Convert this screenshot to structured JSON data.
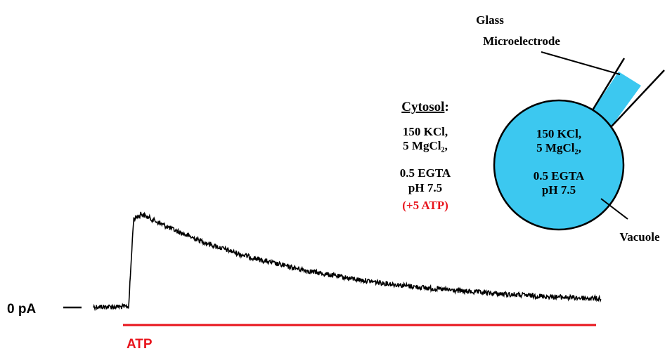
{
  "electrode": {
    "label_lines": [
      "Glass",
      "Microelectrode"
    ]
  },
  "cytosol": {
    "title": "Cytosol",
    "title_suffix": ":",
    "lines": [
      "150 KCl,",
      "5 MgCl₂,",
      "0.5 EGTA",
      "pH 7.5"
    ],
    "extra": "(+5 ATP)"
  },
  "vacuole": {
    "label": "Vacuole",
    "lines": [
      "150 KCl,",
      "5 MgCl₂,",
      "0.5 EGTA",
      "pH 7.5"
    ]
  },
  "trace": {
    "zero_label": "0 pA",
    "stimulus_label": "ATP"
  }
}
